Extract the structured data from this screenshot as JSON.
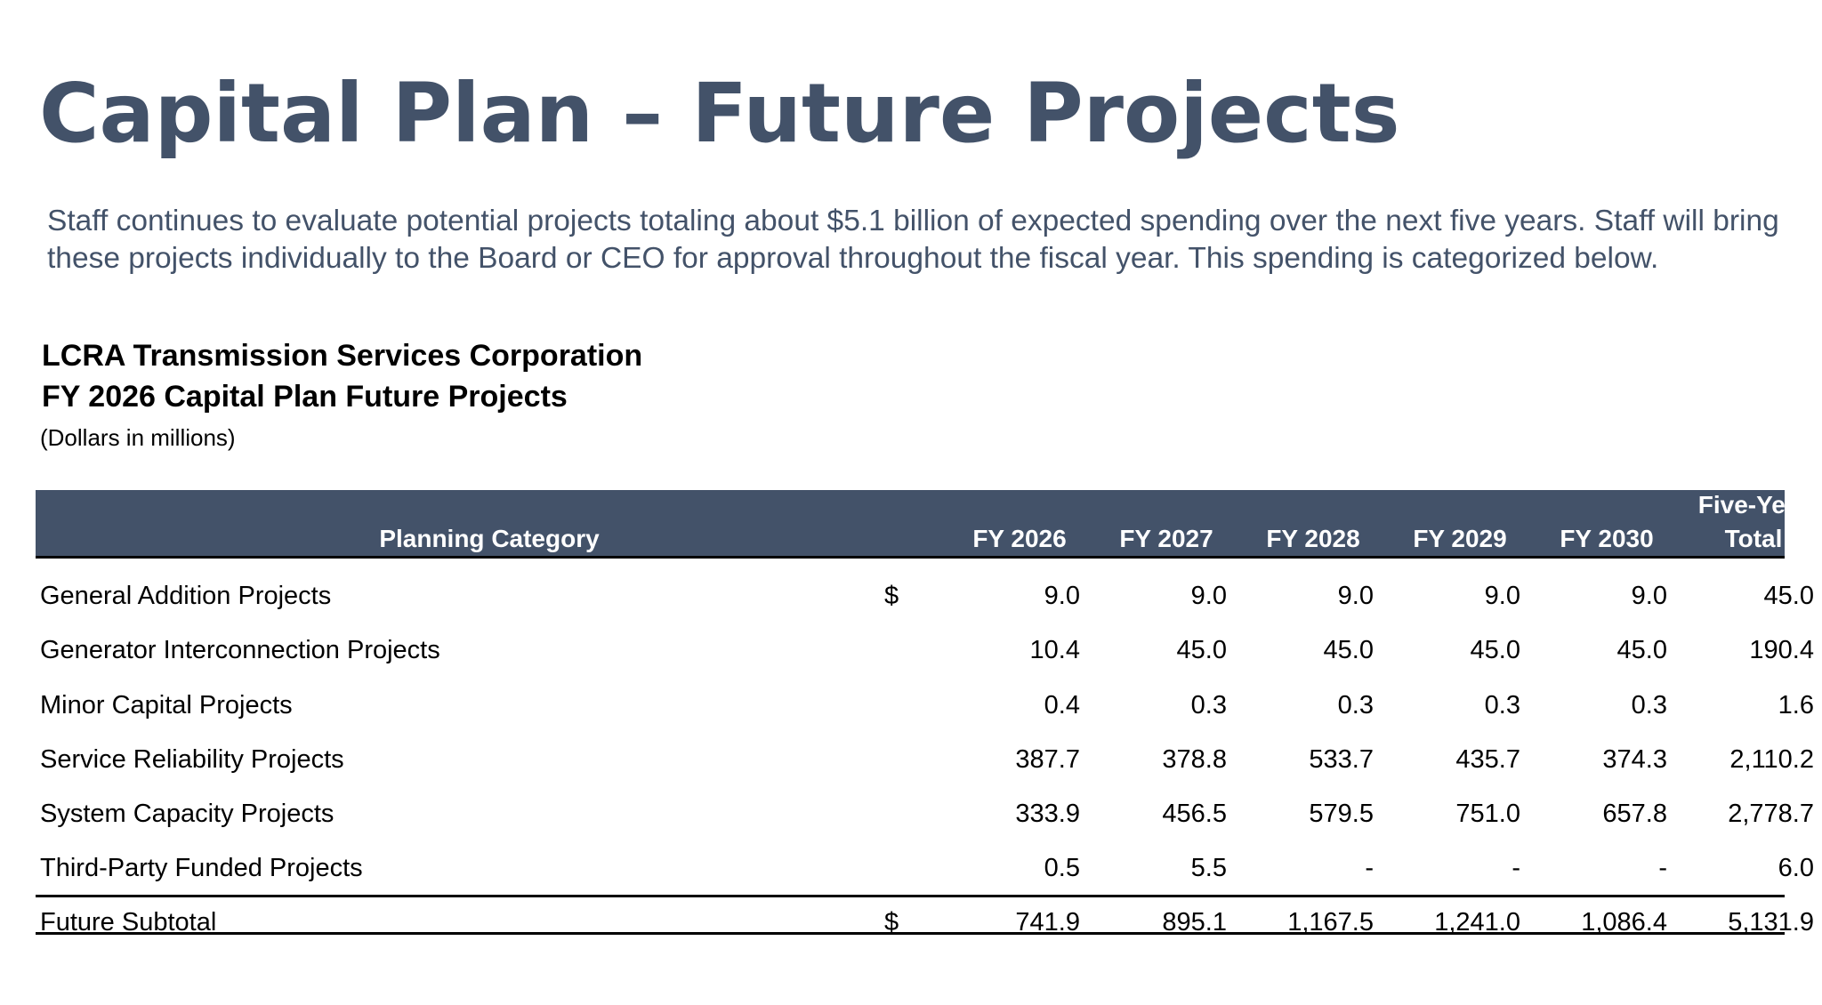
{
  "page": {
    "title": "Capital Plan – Future Projects",
    "intro": "Staff continues to evaluate potential projects totaling about $5.1 billion of expected spending over the next five years. Staff will bring these projects individually to the Board or CEO for approval throughout the fiscal year. This spending is categorized below."
  },
  "table_heading": {
    "organization": "LCRA Transmission Services Corporation",
    "plan": "FY 2026 Capital Plan Future Projects",
    "units": "(Dollars in millions)"
  },
  "colors": {
    "header_bg": "#435269",
    "title_text": "#435269"
  },
  "table": {
    "headers": {
      "category": "Planning Category",
      "years": [
        "FY 2026",
        "FY 2027",
        "FY 2028",
        "FY 2029",
        "FY 2030"
      ],
      "total_line1": "Five-Year",
      "total_line2": "Total"
    },
    "rows": [
      {
        "category": "General Addition Projects",
        "currency": "$",
        "values": [
          "9.0",
          "9.0",
          "9.0",
          "9.0",
          "9.0"
        ],
        "total": "45.0"
      },
      {
        "category": "Generator Interconnection Projects",
        "currency": "",
        "values": [
          "10.4",
          "45.0",
          "45.0",
          "45.0",
          "45.0"
        ],
        "total": "190.4"
      },
      {
        "category": "Minor Capital Projects",
        "currency": "",
        "values": [
          "0.4",
          "0.3",
          "0.3",
          "0.3",
          "0.3"
        ],
        "total": "1.6"
      },
      {
        "category": "Service Reliability Projects",
        "currency": "",
        "values": [
          "387.7",
          "378.8",
          "533.7",
          "435.7",
          "374.3"
        ],
        "total": "2,110.2"
      },
      {
        "category": "System Capacity Projects",
        "currency": "",
        "values": [
          "333.9",
          "456.5",
          "579.5",
          "751.0",
          "657.8"
        ],
        "total": "2,778.7"
      },
      {
        "category": "Third-Party Funded Projects",
        "currency": "",
        "values": [
          "0.5",
          "5.5",
          "-",
          "-",
          "-"
        ],
        "total": "6.0"
      }
    ],
    "subtotal": {
      "category": "Future Subtotal",
      "currency": "$",
      "values": [
        "741.9",
        "895.1",
        "1,167.5",
        "1,241.0",
        "1,086.4"
      ],
      "total": "5,131.9"
    }
  }
}
